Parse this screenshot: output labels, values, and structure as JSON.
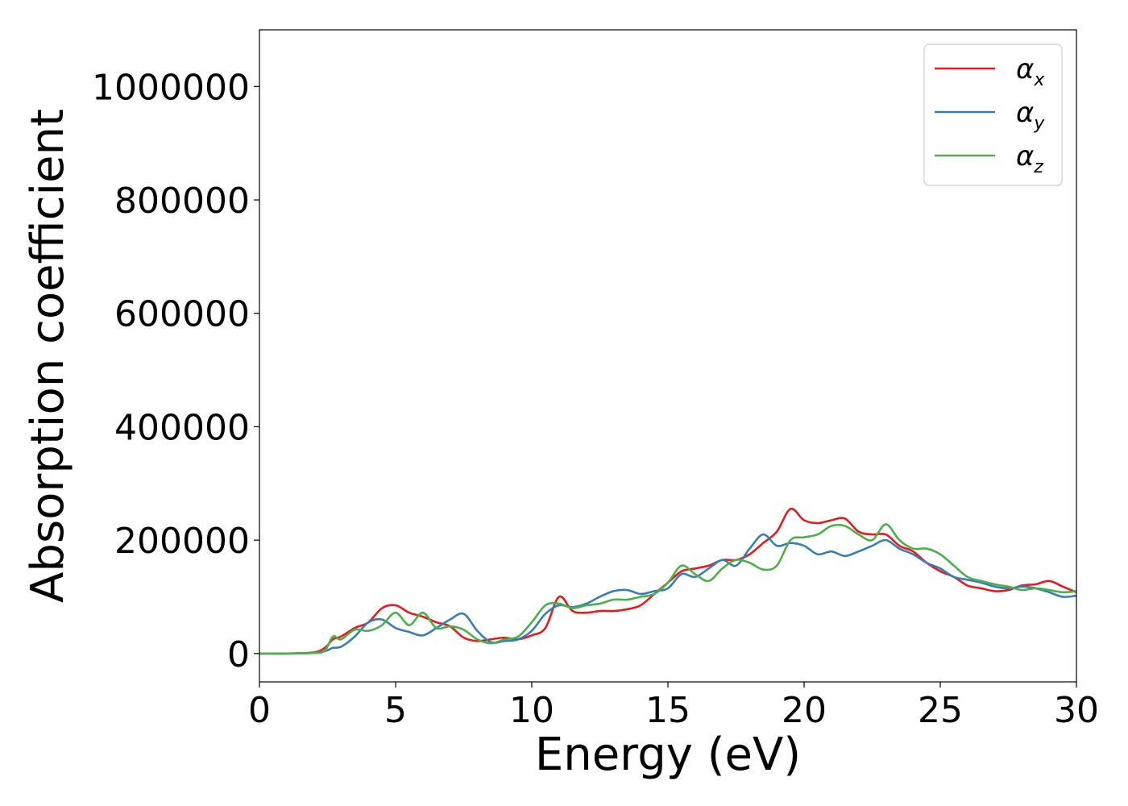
{
  "chart_data": {
    "type": "line",
    "xlabel": "Energy (eV)",
    "ylabel": "Absorption coefficient",
    "xlim": [
      0,
      30
    ],
    "ylim": [
      -50000,
      1100000
    ],
    "xticks": [
      0,
      5,
      10,
      15,
      20,
      25,
      30
    ],
    "yticks": [
      0,
      200000,
      400000,
      600000,
      800000,
      1000000
    ],
    "xtick_labels": [
      "0",
      "5",
      "10",
      "15",
      "20",
      "25",
      "30"
    ],
    "ytick_labels": [
      "0",
      "200000",
      "400000",
      "600000",
      "800000",
      "1000000"
    ],
    "legend_position": "top-right",
    "grid": false,
    "series": [
      {
        "name": "α_x",
        "legend_base": "α",
        "legend_sub": "x",
        "color": "#e41a1c",
        "x": [
          0,
          1,
          2,
          2.4,
          2.7,
          3.0,
          3.5,
          4.0,
          4.5,
          5.0,
          5.5,
          6.0,
          6.5,
          7.0,
          7.5,
          8.0,
          8.5,
          9.0,
          9.5,
          10.0,
          10.5,
          11.0,
          11.5,
          12.0,
          12.5,
          13.0,
          13.5,
          14.0,
          14.5,
          15.0,
          15.5,
          16.0,
          16.5,
          17.0,
          17.5,
          18.0,
          18.5,
          19.0,
          19.5,
          20.0,
          20.5,
          21.0,
          21.5,
          22.0,
          22.5,
          23.0,
          23.5,
          24.0,
          24.5,
          25.0,
          25.5,
          26.0,
          26.5,
          27.0,
          27.5,
          28.0,
          28.5,
          29.0,
          29.5,
          30.0
        ],
        "y": [
          0,
          0,
          2000,
          10000,
          25000,
          30000,
          45000,
          55000,
          80000,
          85000,
          72000,
          65000,
          55000,
          48000,
          28000,
          22000,
          25000,
          28000,
          25000,
          32000,
          45000,
          100000,
          75000,
          72000,
          75000,
          75000,
          78000,
          85000,
          105000,
          125000,
          145000,
          150000,
          155000,
          165000,
          165000,
          175000,
          195000,
          215000,
          255000,
          235000,
          230000,
          235000,
          238000,
          215000,
          210000,
          210000,
          190000,
          180000,
          160000,
          145000,
          135000,
          120000,
          115000,
          110000,
          112000,
          120000,
          122000,
          128000,
          118000,
          108000
        ]
      },
      {
        "name": "α_y",
        "legend_base": "α",
        "legend_sub": "y",
        "color": "#377eb8",
        "x": [
          0,
          1,
          2,
          2.4,
          2.7,
          3.0,
          3.5,
          4.0,
          4.5,
          5.0,
          5.5,
          6.0,
          6.5,
          7.0,
          7.5,
          8.0,
          8.5,
          9.0,
          9.5,
          10.0,
          10.5,
          11.0,
          11.5,
          12.0,
          12.5,
          13.0,
          13.5,
          14.0,
          14.5,
          15.0,
          15.5,
          16.0,
          16.5,
          17.0,
          17.5,
          18.0,
          18.5,
          19.0,
          19.5,
          20.0,
          20.5,
          21.0,
          21.5,
          22.0,
          22.5,
          23.0,
          23.5,
          24.0,
          24.5,
          25.0,
          25.5,
          26.0,
          26.5,
          27.0,
          27.5,
          28.0,
          28.5,
          29.0,
          29.5,
          30.0
        ],
        "y": [
          0,
          0,
          1000,
          4000,
          10000,
          12000,
          30000,
          55000,
          60000,
          45000,
          38000,
          32000,
          45000,
          60000,
          70000,
          40000,
          20000,
          22000,
          25000,
          40000,
          70000,
          85000,
          82000,
          88000,
          100000,
          110000,
          112000,
          105000,
          110000,
          115000,
          140000,
          135000,
          150000,
          165000,
          155000,
          185000,
          210000,
          190000,
          195000,
          190000,
          175000,
          180000,
          172000,
          180000,
          190000,
          200000,
          185000,
          175000,
          160000,
          150000,
          135000,
          130000,
          125000,
          118000,
          115000,
          118000,
          115000,
          108000,
          100000,
          102000
        ]
      },
      {
        "name": "α_z",
        "legend_base": "α",
        "legend_sub": "z",
        "color": "#4daf4a",
        "x": [
          0,
          1,
          2,
          2.4,
          2.7,
          3.0,
          3.5,
          4.0,
          4.5,
          5.0,
          5.5,
          6.0,
          6.5,
          7.0,
          7.5,
          8.0,
          8.5,
          9.0,
          9.5,
          10.0,
          10.5,
          11.0,
          11.5,
          12.0,
          12.5,
          13.0,
          13.5,
          14.0,
          14.5,
          15.0,
          15.5,
          16.0,
          16.5,
          17.0,
          17.5,
          18.0,
          18.5,
          19.0,
          19.5,
          20.0,
          20.5,
          21.0,
          21.5,
          22.0,
          22.5,
          23.0,
          23.5,
          24.0,
          24.5,
          25.0,
          25.5,
          26.0,
          26.5,
          27.0,
          27.5,
          28.0,
          28.5,
          29.0,
          29.5,
          30.0
        ],
        "y": [
          0,
          0,
          1000,
          5000,
          30000,
          25000,
          42000,
          40000,
          50000,
          72000,
          50000,
          72000,
          45000,
          48000,
          42000,
          25000,
          18000,
          25000,
          30000,
          55000,
          85000,
          88000,
          80000,
          85000,
          88000,
          95000,
          95000,
          100000,
          105000,
          125000,
          155000,
          140000,
          128000,
          150000,
          165000,
          160000,
          148000,
          155000,
          200000,
          205000,
          210000,
          225000,
          225000,
          210000,
          200000,
          228000,
          200000,
          185000,
          185000,
          175000,
          155000,
          135000,
          128000,
          122000,
          118000,
          112000,
          115000,
          112000,
          108000,
          110000
        ]
      }
    ]
  }
}
